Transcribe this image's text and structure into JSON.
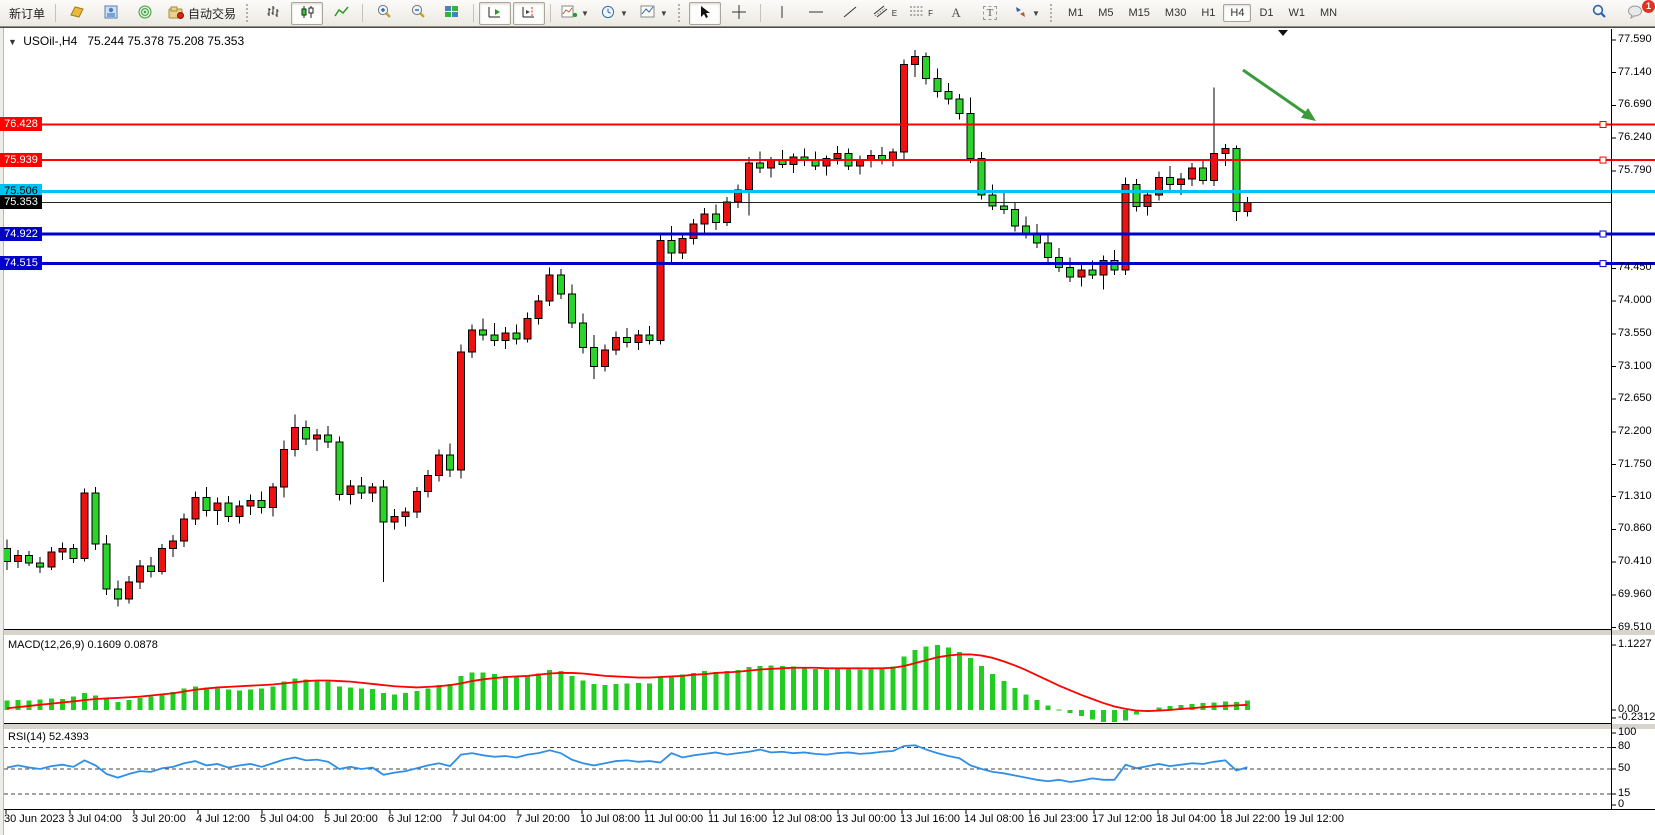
{
  "toolbar": {
    "new_order_label": "新订单",
    "auto_trading_label": "自动交易",
    "periods": [
      "M1",
      "M5",
      "M15",
      "M30",
      "H1",
      "H4",
      "D1",
      "W1",
      "MN"
    ],
    "active_period": "H4",
    "notification_count": "1",
    "text_tool_label": "A",
    "label_tool_label": "T",
    "channel_tool_label": "E",
    "fibo_tool_label": "F"
  },
  "titles": {
    "symbol": "USOil-,H4",
    "ohlc": "75.244 75.378 75.208 75.353"
  },
  "macd_panel": {
    "label": "MACD(12,26,9) 0.1609 0.0878"
  },
  "rsi_panel": {
    "label": "RSI(14) 52.4393"
  },
  "colors": {
    "bull": "#ee1111",
    "bear": "#2bd42b",
    "macd_hist": "#22cc22",
    "macd_signal": "#ff0000",
    "rsi_line": "#2f8fe8",
    "arrow_green": "#3a9b3a",
    "current_price_line": "#222222"
  },
  "chart_data": {
    "type": "candlestick",
    "symbol": "USOil",
    "timeframe": "H4",
    "title": "USOil-,H4 75.244 75.378 75.208 75.353",
    "price_range": [
      69.489,
      77.686
    ],
    "price_axis_ticks": [
      "77.590",
      "77.140",
      "76.690",
      "76.240",
      "75.790",
      "74.450",
      "74.000",
      "73.550",
      "73.100",
      "72.650",
      "72.200",
      "71.750",
      "71.310",
      "70.860",
      "70.410",
      "69.960",
      "69.510"
    ],
    "x_labels": [
      "30 Jun 2023",
      "3 Jul 04:00",
      "3 Jul 20:00",
      "4 Jul 12:00",
      "5 Jul 04:00",
      "5 Jul 20:00",
      "6 Jul 12:00",
      "7 Jul 04:00",
      "7 Jul 20:00",
      "10 Jul 08:00",
      "11 Jul 00:00",
      "11 Jul 16:00",
      "12 Jul 08:00",
      "13 Jul 00:00",
      "13 Jul 16:00",
      "14 Jul 08:00",
      "16 Jul 23:00",
      "17 Jul 12:00",
      "18 Jul 04:00",
      "18 Jul 22:00",
      "19 Jul 12:00"
    ],
    "horizontal_lines": [
      {
        "price": 76.428,
        "label": "76.428",
        "color": "#ff0000",
        "text": "#ffffff",
        "thickness": 2,
        "marker": true
      },
      {
        "price": 75.939,
        "label": "75.939",
        "color": "#ff0000",
        "text": "#ffffff",
        "thickness": 2,
        "marker": true
      },
      {
        "price": 75.506,
        "label": "75.506",
        "color": "#00c4f0",
        "text": "#000000",
        "thickness": 3,
        "marker": false
      },
      {
        "price": 74.922,
        "label": "74.922",
        "color": "#0000c8",
        "text": "#ffffff",
        "thickness": 3,
        "marker": true
      },
      {
        "price": 74.515,
        "label": "74.515",
        "color": "#0000c8",
        "text": "#ffffff",
        "thickness": 3,
        "marker": true
      }
    ],
    "current_price": 75.353,
    "current_price_label": "75.353",
    "candles_ohlc": [
      [
        70.6,
        70.72,
        70.3,
        70.42
      ],
      [
        70.42,
        70.58,
        70.33,
        70.5
      ],
      [
        70.5,
        70.56,
        70.36,
        70.4
      ],
      [
        70.4,
        70.48,
        70.26,
        70.34
      ],
      [
        70.34,
        70.62,
        70.3,
        70.55
      ],
      [
        70.55,
        70.68,
        70.44,
        70.6
      ],
      [
        70.6,
        70.66,
        70.4,
        70.46
      ],
      [
        70.46,
        71.42,
        70.42,
        71.36
      ],
      [
        71.36,
        71.44,
        70.58,
        70.66
      ],
      [
        70.66,
        70.78,
        69.96,
        70.04
      ],
      [
        70.04,
        70.16,
        69.8,
        69.9
      ],
      [
        69.9,
        70.22,
        69.84,
        70.14
      ],
      [
        70.14,
        70.44,
        70.04,
        70.36
      ],
      [
        70.36,
        70.48,
        70.2,
        70.28
      ],
      [
        70.28,
        70.66,
        70.24,
        70.6
      ],
      [
        70.6,
        70.78,
        70.48,
        70.7
      ],
      [
        70.7,
        71.08,
        70.62,
        71.0
      ],
      [
        71.0,
        71.38,
        70.92,
        71.3
      ],
      [
        71.3,
        71.44,
        71.04,
        71.12
      ],
      [
        71.12,
        71.3,
        70.92,
        71.22
      ],
      [
        71.22,
        71.32,
        70.96,
        71.04
      ],
      [
        71.04,
        71.26,
        70.94,
        71.18
      ],
      [
        71.18,
        71.34,
        71.06,
        71.26
      ],
      [
        71.26,
        71.38,
        71.08,
        71.16
      ],
      [
        71.16,
        71.5,
        71.04,
        71.44
      ],
      [
        71.44,
        72.08,
        71.3,
        71.96
      ],
      [
        71.96,
        72.44,
        71.86,
        72.26
      ],
      [
        72.26,
        72.36,
        72.02,
        72.1
      ],
      [
        72.1,
        72.24,
        71.94,
        72.16
      ],
      [
        72.16,
        72.28,
        71.98,
        72.06
      ],
      [
        72.06,
        72.14,
        71.26,
        71.34
      ],
      [
        71.34,
        71.54,
        71.2,
        71.46
      ],
      [
        71.46,
        71.58,
        71.28,
        71.36
      ],
      [
        71.36,
        71.5,
        71.24,
        71.44
      ],
      [
        71.44,
        71.54,
        70.14,
        70.96
      ],
      [
        70.96,
        71.14,
        70.86,
        71.04
      ],
      [
        71.04,
        71.16,
        70.9,
        71.1
      ],
      [
        71.1,
        71.44,
        71.02,
        71.38
      ],
      [
        71.38,
        71.68,
        71.3,
        71.6
      ],
      [
        71.6,
        71.96,
        71.52,
        71.88
      ],
      [
        71.88,
        72.04,
        71.58,
        71.68
      ],
      [
        71.68,
        73.4,
        71.56,
        73.3
      ],
      [
        73.3,
        73.68,
        73.22,
        73.6
      ],
      [
        73.6,
        73.76,
        73.46,
        73.53
      ],
      [
        73.53,
        73.7,
        73.38,
        73.46
      ],
      [
        73.46,
        73.64,
        73.34,
        73.56
      ],
      [
        73.56,
        73.68,
        73.4,
        73.48
      ],
      [
        73.48,
        73.84,
        73.43,
        73.76
      ],
      [
        73.76,
        74.08,
        73.68,
        74.0
      ],
      [
        74.0,
        74.46,
        73.93,
        74.36
      ],
      [
        74.36,
        74.44,
        74.03,
        74.1
      ],
      [
        74.1,
        74.23,
        73.63,
        73.7
      ],
      [
        73.7,
        73.83,
        73.28,
        73.36
      ],
      [
        73.36,
        73.53,
        72.93,
        73.1
      ],
      [
        73.1,
        73.4,
        73.03,
        73.33
      ],
      [
        73.33,
        73.58,
        73.26,
        73.5
      ],
      [
        73.5,
        73.63,
        73.36,
        73.43
      ],
      [
        73.43,
        73.6,
        73.33,
        73.53
      ],
      [
        73.53,
        73.66,
        73.4,
        73.46
      ],
      [
        73.46,
        74.9,
        73.4,
        74.83
      ],
      [
        74.83,
        75.03,
        74.53,
        74.66
      ],
      [
        74.66,
        74.93,
        74.58,
        74.86
      ],
      [
        74.86,
        75.13,
        74.78,
        75.06
      ],
      [
        75.06,
        75.28,
        74.93,
        75.2
      ],
      [
        75.2,
        75.33,
        74.98,
        75.08
      ],
      [
        75.08,
        75.43,
        75.03,
        75.36
      ],
      [
        75.36,
        75.6,
        75.28,
        75.53
      ],
      [
        75.53,
        75.98,
        75.18,
        75.9
      ],
      [
        75.9,
        76.06,
        75.76,
        75.83
      ],
      [
        75.83,
        75.98,
        75.7,
        75.93
      ],
      [
        75.93,
        76.08,
        75.83,
        75.88
      ],
      [
        75.88,
        76.03,
        75.76,
        75.98
      ],
      [
        75.98,
        76.1,
        75.86,
        75.93
      ],
      [
        75.93,
        76.06,
        75.8,
        75.86
      ],
      [
        75.86,
        76.0,
        75.73,
        75.96
      ],
      [
        75.96,
        76.13,
        75.88,
        76.03
      ],
      [
        76.03,
        76.1,
        75.8,
        75.86
      ],
      [
        75.86,
        76.0,
        75.74,
        75.94
      ],
      [
        75.94,
        76.08,
        75.84,
        76.0
      ],
      [
        76.0,
        76.12,
        75.88,
        75.95
      ],
      [
        75.95,
        76.1,
        75.85,
        76.05
      ],
      [
        76.05,
        77.32,
        75.95,
        77.25
      ],
      [
        77.25,
        77.45,
        77.08,
        77.36
      ],
      [
        77.36,
        77.42,
        76.98,
        77.06
      ],
      [
        77.06,
        77.2,
        76.8,
        76.88
      ],
      [
        76.88,
        77.0,
        76.7,
        76.78
      ],
      [
        76.78,
        76.85,
        76.5,
        76.58
      ],
      [
        76.58,
        76.8,
        75.9,
        75.96
      ],
      [
        75.96,
        76.05,
        75.4,
        75.46
      ],
      [
        75.46,
        75.6,
        75.25,
        75.31
      ],
      [
        75.31,
        75.5,
        75.2,
        75.26
      ],
      [
        75.26,
        75.36,
        74.96,
        75.03
      ],
      [
        75.03,
        75.16,
        74.86,
        74.93
      ],
      [
        74.93,
        75.06,
        74.73,
        74.8
      ],
      [
        74.8,
        74.9,
        74.53,
        74.6
      ],
      [
        74.6,
        74.73,
        74.4,
        74.46
      ],
      [
        74.46,
        74.6,
        74.26,
        74.33
      ],
      [
        74.33,
        74.5,
        74.2,
        74.43
      ],
      [
        74.43,
        74.56,
        74.3,
        74.36
      ],
      [
        74.36,
        74.63,
        74.16,
        74.56
      ],
      [
        74.56,
        74.7,
        74.36,
        74.43
      ],
      [
        74.43,
        75.7,
        74.36,
        75.6
      ],
      [
        75.6,
        75.68,
        75.23,
        75.3
      ],
      [
        75.3,
        75.53,
        75.18,
        75.46
      ],
      [
        75.46,
        75.78,
        75.38,
        75.7
      ],
      [
        75.7,
        75.86,
        75.53,
        75.6
      ],
      [
        75.6,
        75.76,
        75.46,
        75.68
      ],
      [
        75.68,
        75.9,
        75.58,
        75.83
      ],
      [
        75.83,
        75.93,
        75.6,
        75.66
      ],
      [
        75.66,
        76.94,
        75.58,
        76.03
      ],
      [
        76.03,
        76.16,
        75.86,
        76.1
      ],
      [
        76.1,
        76.14,
        75.1,
        75.23
      ],
      [
        75.23,
        75.43,
        75.16,
        75.353
      ]
    ],
    "macd": {
      "params": "12,26,9",
      "value_main": 0.1609,
      "value_signal": 0.0878,
      "ticks": [
        "1.1227",
        "0.00",
        "-0.2312"
      ],
      "range": [
        -0.2312,
        1.1227
      ],
      "main": [
        0.16,
        0.17,
        0.16,
        0.18,
        0.2,
        0.19,
        0.23,
        0.29,
        0.25,
        0.19,
        0.14,
        0.17,
        0.21,
        0.23,
        0.27,
        0.31,
        0.37,
        0.41,
        0.39,
        0.37,
        0.35,
        0.34,
        0.35,
        0.37,
        0.41,
        0.49,
        0.54,
        0.53,
        0.51,
        0.49,
        0.41,
        0.39,
        0.37,
        0.36,
        0.29,
        0.27,
        0.29,
        0.33,
        0.37,
        0.43,
        0.45,
        0.59,
        0.65,
        0.65,
        0.62,
        0.59,
        0.57,
        0.59,
        0.63,
        0.69,
        0.67,
        0.59,
        0.51,
        0.45,
        0.43,
        0.45,
        0.46,
        0.47,
        0.46,
        0.57,
        0.59,
        0.61,
        0.64,
        0.67,
        0.66,
        0.67,
        0.69,
        0.74,
        0.76,
        0.77,
        0.76,
        0.75,
        0.73,
        0.71,
        0.7,
        0.71,
        0.72,
        0.7,
        0.71,
        0.73,
        0.75,
        0.92,
        1.04,
        1.1,
        1.12,
        1.08,
        1.0,
        0.9,
        0.76,
        0.62,
        0.5,
        0.38,
        0.27,
        0.17,
        0.08,
        0.01,
        -0.05,
        -0.1,
        -0.16,
        -0.21,
        -0.23,
        -0.18,
        -0.08,
        0.0,
        0.04,
        0.07,
        0.09,
        0.1,
        0.12,
        0.13,
        0.15,
        0.14,
        0.16
      ],
      "signal": [
        0.03,
        0.05,
        0.07,
        0.09,
        0.11,
        0.13,
        0.15,
        0.17,
        0.19,
        0.2,
        0.21,
        0.22,
        0.23,
        0.25,
        0.27,
        0.29,
        0.32,
        0.35,
        0.37,
        0.39,
        0.4,
        0.41,
        0.42,
        0.43,
        0.44,
        0.46,
        0.48,
        0.5,
        0.51,
        0.51,
        0.5,
        0.49,
        0.47,
        0.45,
        0.43,
        0.41,
        0.4,
        0.39,
        0.4,
        0.41,
        0.43,
        0.46,
        0.5,
        0.53,
        0.55,
        0.57,
        0.58,
        0.59,
        0.61,
        0.63,
        0.64,
        0.64,
        0.63,
        0.61,
        0.59,
        0.58,
        0.57,
        0.56,
        0.56,
        0.57,
        0.58,
        0.59,
        0.61,
        0.62,
        0.64,
        0.65,
        0.66,
        0.68,
        0.7,
        0.71,
        0.72,
        0.73,
        0.73,
        0.73,
        0.72,
        0.72,
        0.72,
        0.72,
        0.72,
        0.72,
        0.73,
        0.76,
        0.81,
        0.86,
        0.91,
        0.94,
        0.96,
        0.96,
        0.94,
        0.9,
        0.84,
        0.77,
        0.69,
        0.6,
        0.51,
        0.42,
        0.34,
        0.26,
        0.19,
        0.12,
        0.06,
        0.02,
        -0.01,
        -0.02,
        -0.01,
        0.0,
        0.02,
        0.03,
        0.05,
        0.06,
        0.07,
        0.08,
        0.09
      ]
    },
    "rsi": {
      "period": 14,
      "value": 52.4393,
      "ticks": [
        "100",
        "80",
        "50",
        "15",
        "0"
      ],
      "levels": [
        80,
        50,
        15
      ],
      "range": [
        0,
        100
      ],
      "values": [
        52,
        55,
        52,
        50,
        54,
        56,
        53,
        62,
        55,
        43,
        38,
        43,
        47,
        46,
        51,
        53,
        58,
        61,
        55,
        57,
        52,
        55,
        57,
        53,
        58,
        63,
        66,
        62,
        63,
        60,
        50,
        53,
        50,
        52,
        42,
        45,
        47,
        51,
        55,
        58,
        54,
        70,
        72,
        69,
        67,
        68,
        66,
        70,
        72,
        76,
        72,
        63,
        58,
        55,
        58,
        61,
        62,
        60,
        61,
        59,
        72,
        66,
        69,
        71,
        73,
        70,
        72,
        74,
        77,
        73,
        74,
        72,
        73,
        71,
        70,
        72,
        73,
        71,
        72,
        74,
        75,
        82,
        83,
        77,
        72,
        68,
        65,
        55,
        50,
        46,
        44,
        41,
        38,
        35,
        33,
        35,
        32,
        34,
        37,
        35,
        35,
        56,
        51,
        54,
        57,
        54,
        56,
        58,
        57,
        60,
        62,
        48,
        52.44
      ]
    }
  }
}
